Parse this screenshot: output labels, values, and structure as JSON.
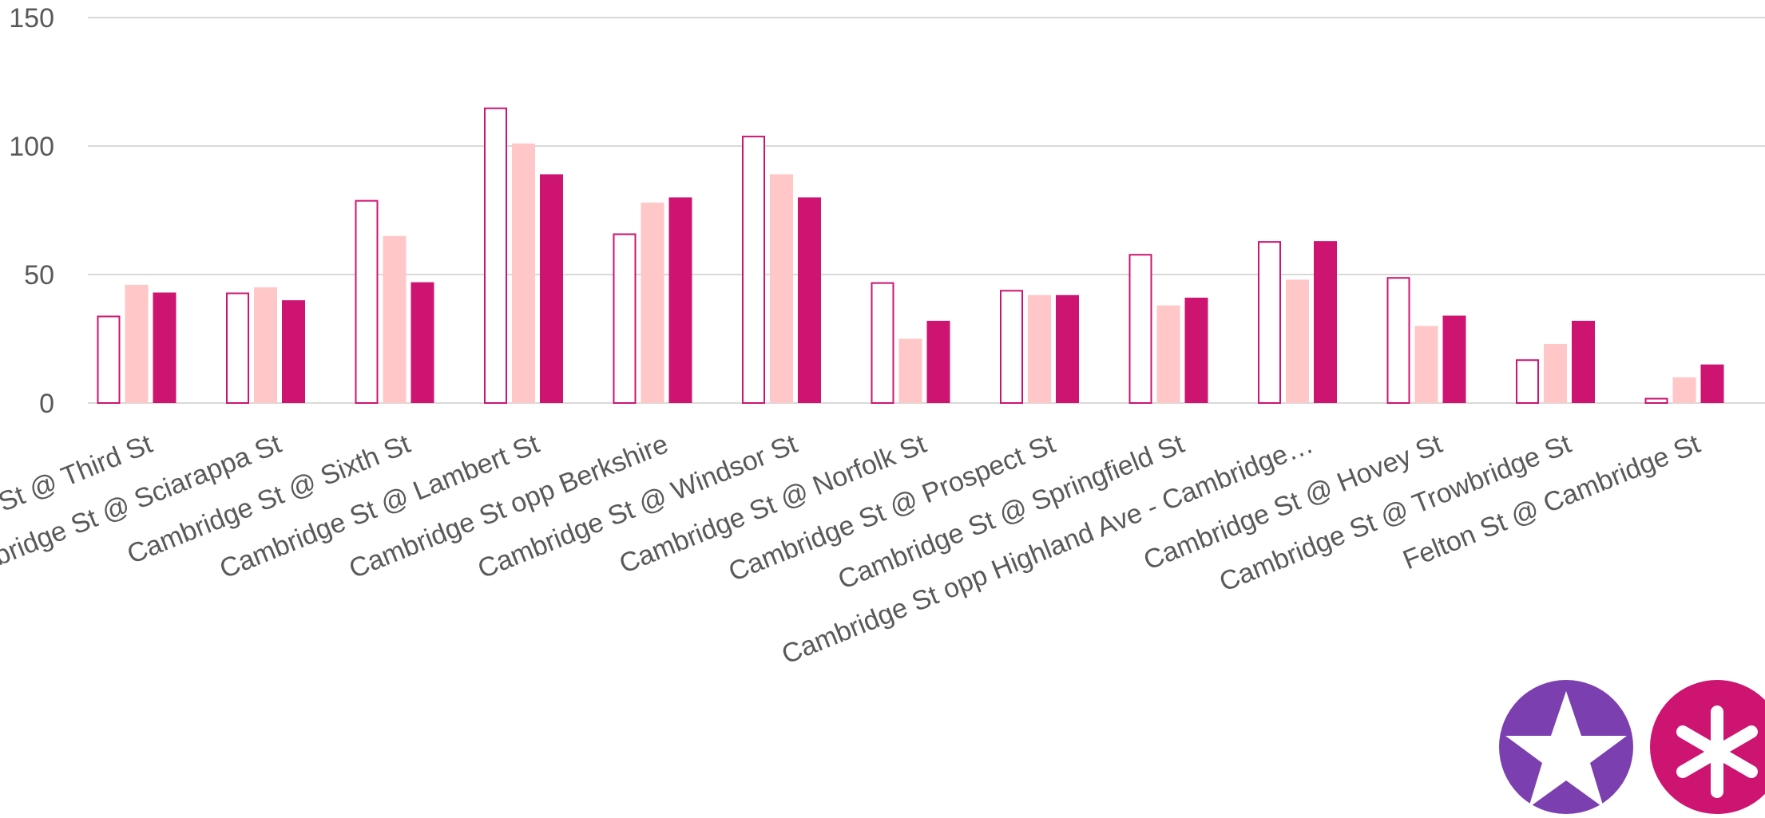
{
  "chart_data": {
    "type": "bar",
    "categories": [
      "Cambridge St @ Third St",
      "Cambridge St @ Sciarappa St",
      "Cambridge St @ Sixth St",
      "Cambridge St @ Lambert St",
      "Cambridge St opp Berkshire",
      "Cambridge St @ Windsor St",
      "Cambridge St @ Norfolk St",
      "Cambridge St @ Prospect St",
      "Cambridge St @ Springfield St",
      "Cambridge St opp Highland Ave - Cambridge…",
      "Cambridge St @ Hovey St",
      "Cambridge St @ Trowbridge St",
      "Felton St @ Cambridge St"
    ],
    "series": [
      {
        "values": [
          34,
          43,
          79,
          115,
          66,
          104,
          47,
          44,
          58,
          63,
          49,
          17,
          2
        ],
        "color": "#cc1470",
        "style": "outline"
      },
      {
        "values": [
          46,
          45,
          65,
          101,
          78,
          89,
          25,
          42,
          38,
          48,
          30,
          23,
          10
        ],
        "color": "#ffc7c7",
        "style": "filled"
      },
      {
        "values": [
          43,
          40,
          47,
          89,
          80,
          80,
          32,
          42,
          41,
          63,
          34,
          32,
          15
        ],
        "color": "#cc1470",
        "style": "filled"
      }
    ],
    "ylim": [
      0,
      150
    ],
    "yticks": [
      0,
      50,
      100,
      150
    ],
    "grid": true,
    "xlabel": "",
    "ylabel": ""
  },
  "badges": [
    {
      "icon": "star-icon",
      "color": "#7b3fb0"
    },
    {
      "icon": "asterisk-icon",
      "color": "#cc1470"
    }
  ]
}
